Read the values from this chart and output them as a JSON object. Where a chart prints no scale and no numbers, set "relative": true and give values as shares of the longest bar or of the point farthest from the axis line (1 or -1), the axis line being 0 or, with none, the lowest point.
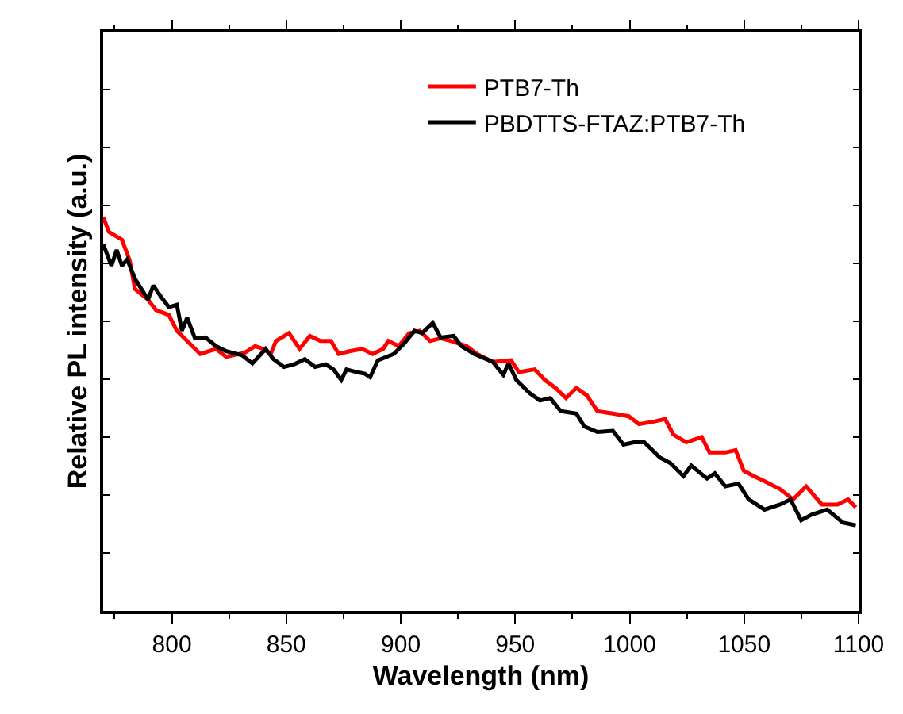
{
  "chart_data": {
    "type": "line",
    "relative": true,
    "xlabel": "Wavelength (nm)",
    "ylabel": "Relative PL intensity (a.u.)",
    "xlim": [
      770,
      1100
    ],
    "xticks": [
      800,
      850,
      900,
      950,
      1000,
      1050,
      1100
    ],
    "legend": "top right",
    "marker": "none",
    "line_style": "solid",
    "series": [
      {
        "name": "PTB7-Th",
        "color": "#ff0000",
        "x": [
          770,
          772.5,
          778.2,
          781.6,
          783.9,
          789.6,
          793.0,
          798.7,
          802.2,
          806.7,
          812.4,
          819.3,
          823.8,
          831.8,
          836.4,
          839.8,
          843.2,
          845.5,
          851.2,
          855.8,
          860.3,
          864.9,
          869.5,
          872.9,
          877.5,
          883.2,
          887.7,
          892.3,
          894.6,
          899.1,
          903.7,
          908.3,
          912.8,
          917.4,
          922.0,
          928.8,
          933.4,
          940.2,
          948.2,
          951.6,
          958.5,
          963.0,
          967.6,
          972.2,
          976.7,
          981.3,
          985.9,
          992.7,
          999.6,
          1004.1,
          1011.0,
          1015.5,
          1019.0,
          1024.7,
          1031.5,
          1034.9,
          1041.8,
          1046.3,
          1049.8,
          1054.3,
          1058.9,
          1065.7,
          1071.4,
          1077.1,
          1084.0,
          1090.8,
          1095.4,
          1098.8
        ],
        "values": [
          1.0,
          0.962,
          0.942,
          0.889,
          0.817,
          0.79,
          0.764,
          0.751,
          0.711,
          0.685,
          0.652,
          0.665,
          0.645,
          0.655,
          0.672,
          0.665,
          0.652,
          0.685,
          0.705,
          0.665,
          0.698,
          0.685,
          0.685,
          0.652,
          0.659,
          0.665,
          0.652,
          0.665,
          0.685,
          0.672,
          0.705,
          0.711,
          0.685,
          0.692,
          0.685,
          0.672,
          0.652,
          0.632,
          0.636,
          0.606,
          0.613,
          0.586,
          0.566,
          0.54,
          0.566,
          0.547,
          0.507,
          0.501,
          0.494,
          0.474,
          0.481,
          0.487,
          0.448,
          0.428,
          0.441,
          0.402,
          0.402,
          0.408,
          0.356,
          0.342,
          0.329,
          0.309,
          0.283,
          0.316,
          0.27,
          0.27,
          0.283,
          0.263
        ]
      },
      {
        "name": "PBDTTS-FTAZ:PTB7-Th",
        "color": "#000000",
        "x": [
          770,
          773.6,
          775.9,
          778.2,
          780.5,
          783.9,
          789.6,
          791.9,
          795.3,
          798.7,
          802.2,
          804.4,
          806.7,
          810.1,
          814.7,
          819.3,
          823.8,
          830.7,
          835.2,
          841.0,
          844.4,
          849.0,
          853.5,
          858.1,
          862.6,
          867.2,
          870.6,
          874.0,
          876.3,
          880.9,
          884.3,
          886.6,
          890.0,
          896.9,
          901.4,
          906.0,
          909.4,
          914.0,
          917.4,
          923.1,
          926.5,
          932.2,
          940.2,
          944.8,
          947.1,
          950.5,
          956.2,
          960.8,
          965.3,
          969.9,
          976.7,
          980.2,
          985.9,
          992.7,
          997.3,
          1001.8,
          1006.4,
          1013.2,
          1017.8,
          1023.5,
          1026.9,
          1033.8,
          1037.2,
          1041.8,
          1047.5,
          1052.0,
          1058.9,
          1065.7,
          1070.3,
          1074.9,
          1079.4,
          1086.3,
          1093.1,
          1098.8
        ],
        "values": [
          0.931,
          0.876,
          0.916,
          0.876,
          0.892,
          0.843,
          0.79,
          0.826,
          0.797,
          0.771,
          0.777,
          0.711,
          0.744,
          0.692,
          0.694,
          0.672,
          0.659,
          0.649,
          0.628,
          0.665,
          0.639,
          0.619,
          0.626,
          0.639,
          0.619,
          0.626,
          0.613,
          0.586,
          0.613,
          0.606,
          0.602,
          0.593,
          0.636,
          0.652,
          0.678,
          0.711,
          0.705,
          0.731,
          0.694,
          0.698,
          0.672,
          0.652,
          0.632,
          0.599,
          0.628,
          0.586,
          0.553,
          0.534,
          0.54,
          0.507,
          0.501,
          0.468,
          0.454,
          0.457,
          0.422,
          0.428,
          0.428,
          0.389,
          0.375,
          0.342,
          0.369,
          0.336,
          0.349,
          0.316,
          0.323,
          0.283,
          0.257,
          0.27,
          0.283,
          0.23,
          0.244,
          0.257,
          0.224,
          0.217
        ]
      }
    ]
  }
}
